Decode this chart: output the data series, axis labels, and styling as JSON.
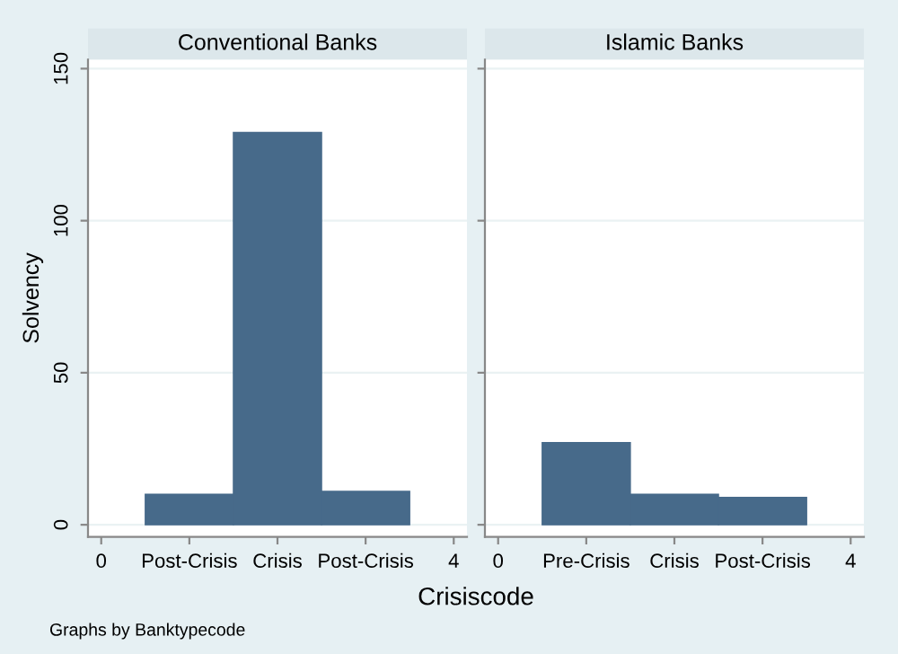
{
  "chart_data": [
    {
      "type": "bar",
      "title": "Conventional Banks",
      "ylabel": "Solvency",
      "xlabel": "Crisiscode",
      "annotations": [
        "Graphs by Banktypecode"
      ],
      "x": [
        1,
        2,
        3
      ],
      "values": [
        10,
        129,
        11
      ],
      "color": "#476a8a",
      "xlim": [
        -0.15,
        4.15
      ],
      "xticks": [
        0,
        {
          "value": 1,
          "label": "Post-Crisis"
        },
        {
          "value": 2,
          "label": "Crisis"
        },
        {
          "value": 3,
          "label": "Post-Crisis"
        },
        4
      ],
      "ylim": [
        -4,
        153
      ],
      "yticks": [
        0,
        50,
        100,
        150
      ],
      "grid": "y"
    },
    {
      "type": "bar",
      "title": "Islamic Banks",
      "x": [
        1,
        2,
        3
      ],
      "values": [
        27,
        10,
        9
      ],
      "color": "#476a8a",
      "xlim": [
        -0.15,
        4.15
      ],
      "xticks": [
        0,
        {
          "value": 1,
          "label": "Pre-Crisis"
        },
        {
          "value": 2,
          "label": "Crisis"
        },
        {
          "value": 3,
          "label": "Post-Crisis"
        },
        4
      ],
      "ylim": [
        -4,
        153
      ],
      "yticks": [
        0,
        50,
        100,
        150
      ],
      "grid": "y",
      "tick_labels": "x"
    }
  ]
}
